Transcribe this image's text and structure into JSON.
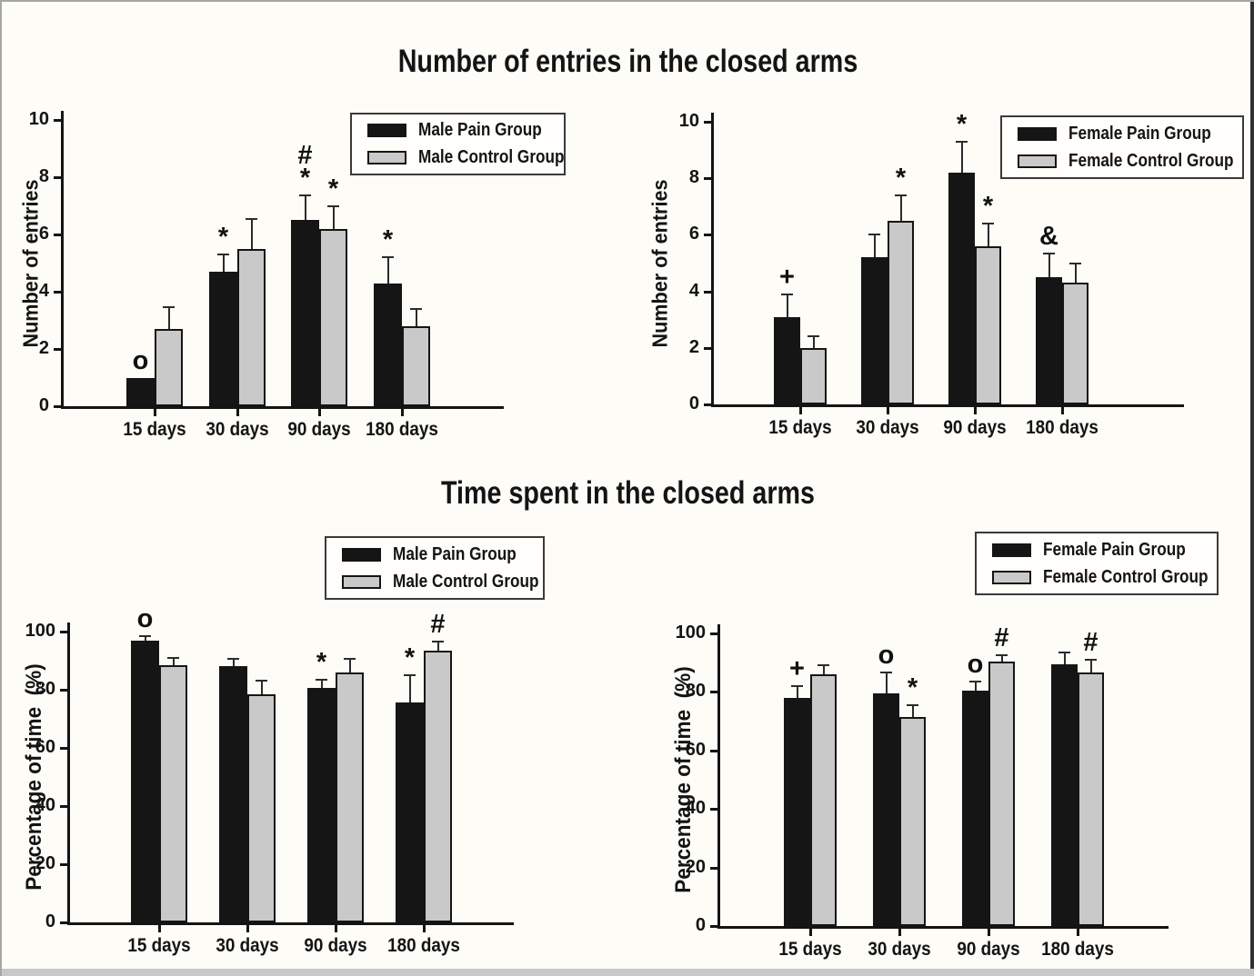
{
  "page": {
    "title_entries": "Number of entries in the closed arms",
    "title_time": "Time spent in the closed arms"
  },
  "colors": {
    "pain_bar": "#151515",
    "control_bar": "#c9c9c9",
    "background": "#fdfcf6",
    "bottom_strip": "#c8c8c8"
  },
  "chart_data": [
    {
      "id": "entries-male",
      "type": "bar",
      "section_title": "Number of entries in the closed arms",
      "ylabel": "Number of entries",
      "ylim": [
        0,
        10
      ],
      "yticks": [
        0,
        2,
        4,
        6,
        8,
        10
      ],
      "categories": [
        "15 days",
        "30 days",
        "90 days",
        "180 days"
      ],
      "grid": false,
      "legend_position": "top-right",
      "series": [
        {
          "name": "Male Pain Group",
          "values": [
            1.0,
            4.7,
            6.5,
            4.3
          ],
          "errors": [
            0,
            0.6,
            0.85,
            0.9
          ],
          "annotations": [
            "o",
            "*",
            "#\n*",
            "*"
          ]
        },
        {
          "name": "Male Control Group",
          "values": [
            2.7,
            5.5,
            6.2,
            2.8
          ],
          "errors": [
            0.75,
            1.05,
            0.8,
            0.6
          ],
          "annotations": [
            "",
            "",
            "*",
            ""
          ]
        }
      ]
    },
    {
      "id": "entries-female",
      "type": "bar",
      "section_title": "Number of entries in the closed arms",
      "ylabel": "Number of entries",
      "ylim": [
        0,
        10
      ],
      "yticks": [
        0,
        2,
        4,
        6,
        8,
        10
      ],
      "categories": [
        "15 days",
        "30 days",
        "90 days",
        "180 days"
      ],
      "grid": false,
      "legend_position": "top-right",
      "series": [
        {
          "name": "Female Pain Group",
          "values": [
            3.1,
            5.2,
            8.2,
            4.5
          ],
          "errors": [
            0.8,
            0.8,
            1.1,
            0.85
          ],
          "annotations": [
            "+",
            "",
            "*",
            "&"
          ]
        },
        {
          "name": "Female Control Group",
          "values": [
            2.0,
            6.5,
            5.6,
            4.3
          ],
          "errors": [
            0.4,
            0.9,
            0.8,
            0.7
          ],
          "annotations": [
            "",
            "*",
            "*",
            ""
          ]
        }
      ]
    },
    {
      "id": "time-male",
      "type": "bar",
      "section_title": "Time spent in the closed arms",
      "ylabel": "Percentage of time  (%)",
      "ylim": [
        0,
        100
      ],
      "yticks": [
        0,
        20,
        40,
        60,
        80,
        100
      ],
      "categories": [
        "15 days",
        "30 days",
        "90 days",
        "180 days"
      ],
      "grid": false,
      "legend_position": "top-right",
      "series": [
        {
          "name": "Male Pain Group",
          "values": [
            97,
            88,
            80.5,
            75.5
          ],
          "errors": [
            1.5,
            2.5,
            3,
            9.5
          ],
          "annotations": [
            "o",
            "",
            "*",
            "*"
          ]
        },
        {
          "name": "Male Control Group",
          "values": [
            88.5,
            78.5,
            86,
            93.5
          ],
          "errors": [
            2.5,
            4.5,
            4.5,
            3
          ],
          "annotations": [
            "",
            "",
            "",
            "#"
          ]
        }
      ]
    },
    {
      "id": "time-female",
      "type": "bar",
      "section_title": "Time spent in the closed arms",
      "ylabel": "Percentage of time  (%)",
      "ylim": [
        0,
        100
      ],
      "yticks": [
        0,
        20,
        40,
        60,
        80,
        100
      ],
      "categories": [
        "15 days",
        "30 days",
        "90 days",
        "180 days"
      ],
      "grid": false,
      "legend_position": "top-right",
      "series": [
        {
          "name": "Female Pain Group",
          "values": [
            78,
            79.5,
            80.5,
            89.5
          ],
          "errors": [
            4,
            7,
            3,
            4
          ],
          "annotations": [
            "+",
            "o",
            "o",
            ""
          ]
        },
        {
          "name": "Female Control Group",
          "values": [
            86,
            71.5,
            90.5,
            86.5
          ],
          "errors": [
            3,
            4,
            2,
            4.5
          ],
          "annotations": [
            "",
            "*",
            "#",
            "#"
          ]
        }
      ]
    }
  ]
}
